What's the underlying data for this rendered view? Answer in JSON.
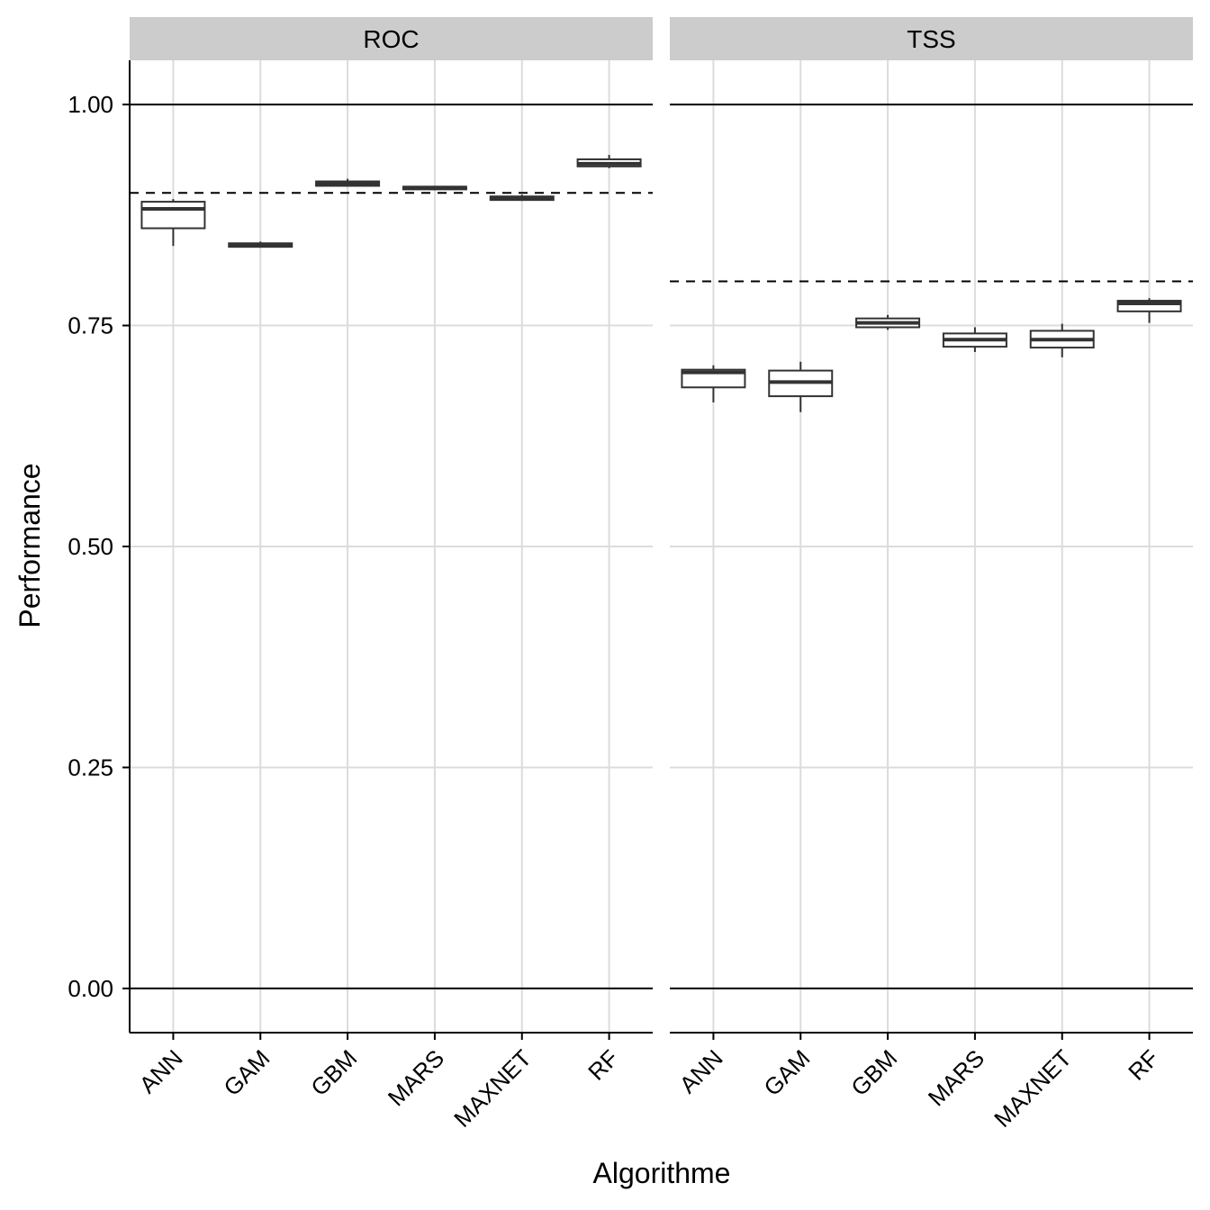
{
  "chart_data": {
    "type": "boxplot",
    "xlabel": "Algorithme",
    "ylabel": "Performance",
    "ylim": [
      -0.05,
      1.05
    ],
    "yticks": [
      "0.00",
      "0.25",
      "0.50",
      "0.75",
      "1.00"
    ],
    "ytick_values": [
      0,
      0.25,
      0.5,
      0.75,
      1
    ],
    "categories": [
      "ANN",
      "GAM",
      "GBM",
      "MARS",
      "MAXNET",
      "RF"
    ],
    "grid": true,
    "reference_lines": [
      0,
      1
    ],
    "panels": [
      {
        "name": "ROC",
        "threshold": 0.9,
        "boxes": [
          {
            "category": "ANN",
            "min": 0.84,
            "q1": 0.86,
            "median": 0.882,
            "q3": 0.89,
            "max": 0.893
          },
          {
            "category": "GAM",
            "min": 0.838,
            "q1": 0.839,
            "median": 0.841,
            "q3": 0.843,
            "max": 0.845
          },
          {
            "category": "GBM",
            "min": 0.907,
            "q1": 0.908,
            "median": 0.91,
            "q3": 0.913,
            "max": 0.916
          },
          {
            "category": "MARS",
            "min": 0.903,
            "q1": 0.904,
            "median": 0.906,
            "q3": 0.907,
            "max": 0.908
          },
          {
            "category": "MAXNET",
            "min": 0.891,
            "q1": 0.892,
            "median": 0.894,
            "q3": 0.896,
            "max": 0.898
          },
          {
            "category": "RF",
            "min": 0.928,
            "q1": 0.93,
            "median": 0.933,
            "q3": 0.938,
            "max": 0.943
          }
        ]
      },
      {
        "name": "TSS",
        "threshold": 0.8,
        "boxes": [
          {
            "category": "ANN",
            "min": 0.663,
            "q1": 0.68,
            "median": 0.697,
            "q3": 0.7,
            "max": 0.705
          },
          {
            "category": "GAM",
            "min": 0.652,
            "q1": 0.67,
            "median": 0.686,
            "q3": 0.699,
            "max": 0.709
          },
          {
            "category": "GBM",
            "min": 0.745,
            "q1": 0.748,
            "median": 0.753,
            "q3": 0.758,
            "max": 0.762
          },
          {
            "category": "MARS",
            "min": 0.72,
            "q1": 0.726,
            "median": 0.734,
            "q3": 0.741,
            "max": 0.748
          },
          {
            "category": "MAXNET",
            "min": 0.714,
            "q1": 0.725,
            "median": 0.734,
            "q3": 0.744,
            "max": 0.752
          },
          {
            "category": "RF",
            "min": 0.753,
            "q1": 0.766,
            "median": 0.775,
            "q3": 0.778,
            "max": 0.781
          }
        ]
      }
    ]
  }
}
